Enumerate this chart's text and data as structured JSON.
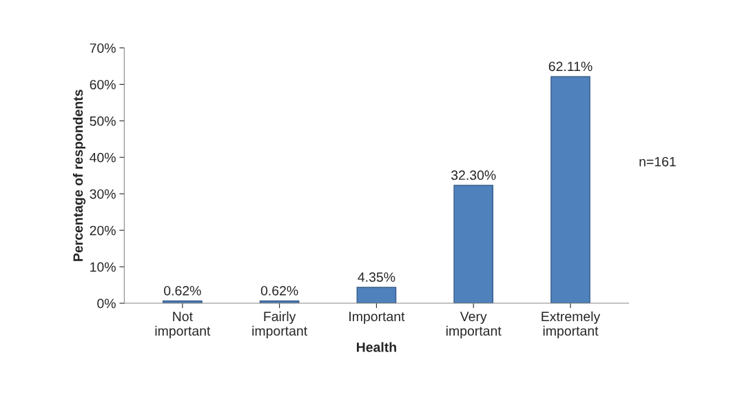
{
  "chart_data": {
    "type": "bar",
    "categories": [
      "Not important",
      "Fairly important",
      "Important",
      "Very important",
      "Extremely important"
    ],
    "values": [
      0.62,
      0.62,
      4.35,
      32.3,
      62.11
    ],
    "value_labels": [
      "0.62%",
      "0.62%",
      "4.35%",
      "32.30%",
      "62.11%"
    ],
    "color": "#4f81bd",
    "xlabel": "Health",
    "ylabel": "Percentage of respondents",
    "ylim": [
      0,
      70
    ],
    "yticks": [
      {
        "value": 0,
        "label": "0%"
      },
      {
        "value": 10,
        "label": "10%"
      },
      {
        "value": 20,
        "label": "20%"
      },
      {
        "value": 30,
        "label": "30%"
      },
      {
        "value": 40,
        "label": "40%"
      },
      {
        "value": 50,
        "label": "50%"
      },
      {
        "value": 60,
        "label": "60%"
      },
      {
        "value": 70,
        "label": "70%"
      }
    ],
    "annotations": [
      "n=161"
    ],
    "grid": false,
    "legend": false
  }
}
